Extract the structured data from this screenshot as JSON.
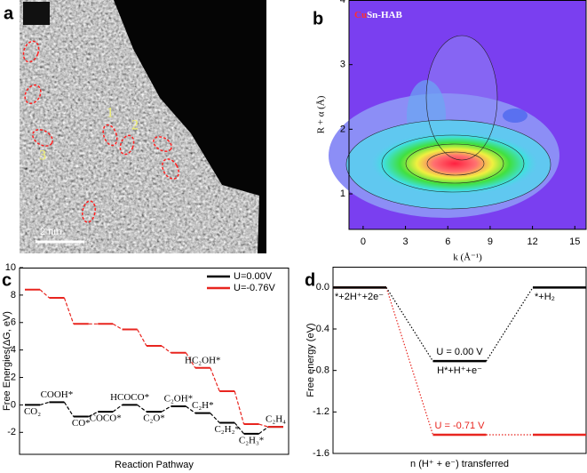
{
  "image": {
    "panel_label": "a",
    "scale_bar": "2 nm",
    "site_labels": [
      "1",
      "2",
      "3"
    ]
  },
  "chart_data": [
    {
      "type": "contour",
      "panel_label": "b",
      "title_parts": [
        "Cu",
        "Sn-HAB"
      ],
      "title_colors": [
        "#ff3030",
        "#ffffff"
      ],
      "x_label": "k (Å⁻¹)",
      "y_label": "R + α (Å)",
      "xlim": [
        -1,
        15.8
      ],
      "ylim": [
        0.45,
        4
      ],
      "xticks": [
        0,
        3,
        6,
        9,
        12,
        15
      ],
      "yticks": [
        1,
        2,
        3,
        4
      ]
    },
    {
      "type": "step",
      "panel_label": "c",
      "x_label": "Reaction Pathway",
      "y_label": "Free Energies(ΔG, eV)",
      "categories": [
        "CO₂",
        "COOH*",
        "CO*",
        "COCO*",
        "HCOCO*",
        "C₂O*",
        "C₂OH*",
        "C₂H*",
        "C₂H₂*",
        "C₂H₃*",
        "C₂H₄"
      ],
      "series": [
        {
          "name": "U=0.00V",
          "color": "#000000",
          "values": [
            0,
            0.2,
            -0.85,
            -0.5,
            0,
            -0.5,
            -0.1,
            -0.6,
            -1.3,
            -2.1,
            -1.6
          ]
        },
        {
          "name": "U=-0.76V",
          "color": "#e8251f",
          "values": [
            8.4,
            7.8,
            5.9,
            5.9,
            5.5,
            4.3,
            3.8,
            2.7,
            1.0,
            -1.4,
            -1.6
          ]
        }
      ],
      "annotation": "HC₂OH*",
      "ylim": [
        -3.6,
        10
      ],
      "yticks": [
        -2,
        0,
        2,
        4,
        6,
        8,
        10
      ],
      "legend": "upper right"
    },
    {
      "type": "step",
      "panel_label": "d",
      "x_label": "n (H⁺ + e⁻) transferred",
      "y_label": "Free energy (eV)",
      "categories": [
        "*+2H⁺+2e⁻",
        "H*+H⁺+e⁻",
        "*+H₂"
      ],
      "series": [
        {
          "name": "U = -0.71 V",
          "color": "#e8251f",
          "values": [
            0,
            -1.42,
            -1.42
          ]
        },
        {
          "name": "U = 0.00 V",
          "color": "#000000",
          "values": [
            0,
            -0.71,
            0
          ]
        }
      ],
      "ylim": [
        -1.6,
        0.2
      ],
      "yticks": [
        {
          "value": 0,
          "label": "0.0"
        },
        -0.4,
        -0.8,
        -1.2,
        -1.6
      ]
    }
  ]
}
